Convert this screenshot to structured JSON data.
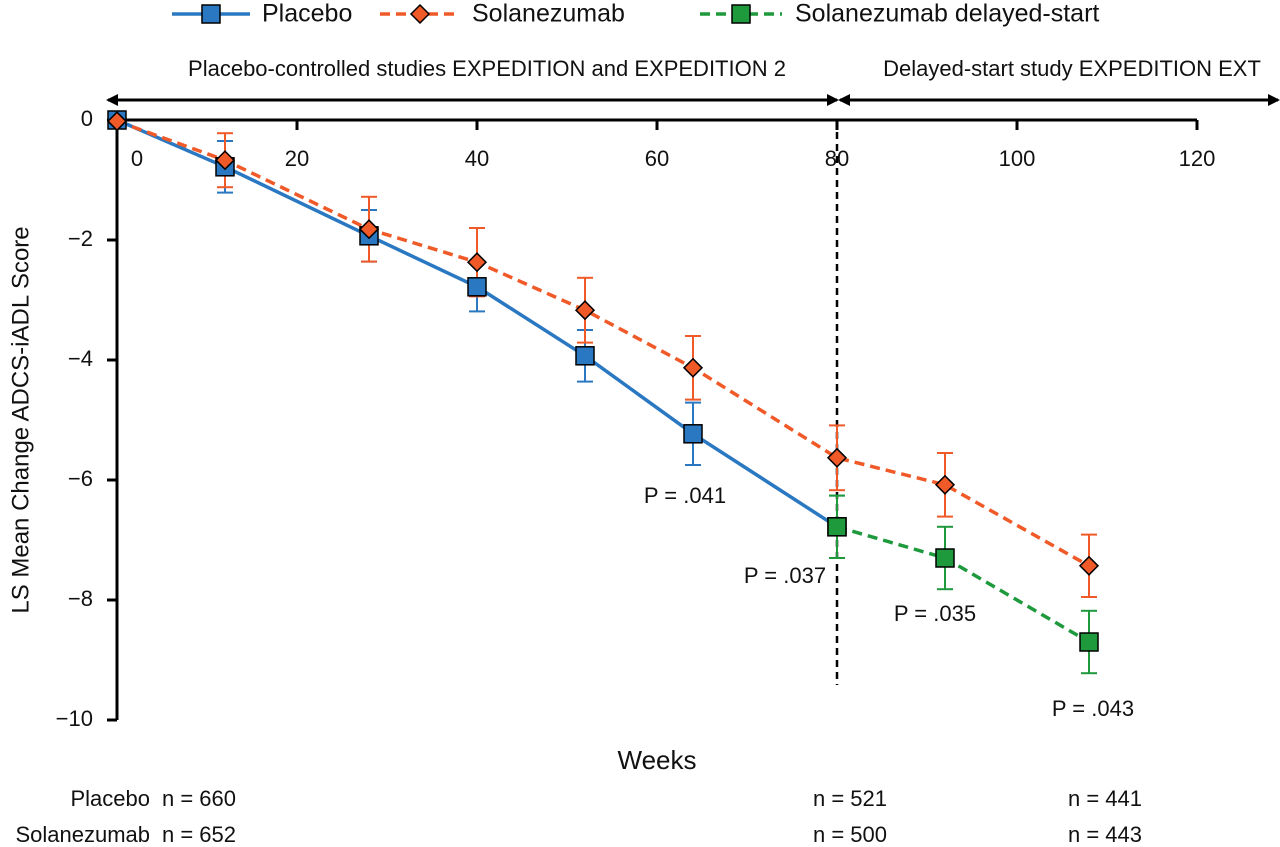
{
  "chart_data": {
    "type": "line",
    "x_label": "Weeks",
    "y_label": "LS Mean Change ADCS-iADL Score",
    "xlim": [
      0,
      120
    ],
    "xticks": [
      0,
      20,
      40,
      60,
      80,
      100,
      120
    ],
    "ylim": [
      -10,
      0
    ],
    "yticks": [
      0,
      {
        "value": -2,
        "label": "−2"
      },
      {
        "value": -4,
        "label": "−4"
      },
      {
        "value": -6,
        "label": "−6"
      },
      {
        "value": -8,
        "label": "−8"
      },
      {
        "value": -10,
        "label": "−10"
      }
    ],
    "series": [
      {
        "name": "Placebo",
        "color": "#2a78c2",
        "marker": "square",
        "dashed": false,
        "x": [
          0,
          12,
          28,
          40,
          52,
          64,
          80
        ],
        "values": [
          0,
          -0.78,
          -1.93,
          -2.78,
          -3.93,
          -5.23,
          -6.78
        ],
        "errors": [
          null,
          0.43,
          0.43,
          0.41,
          0.43,
          0.52,
          0.52
        ]
      },
      {
        "name": "Solanezumab",
        "color": "#f05a28",
        "marker": "diamond",
        "dashed": true,
        "x": [
          0,
          12,
          28,
          40,
          52,
          64,
          80,
          92,
          108
        ],
        "values": [
          -0.02,
          -0.67,
          -1.82,
          -2.37,
          -3.17,
          -4.13,
          -5.63,
          -6.08,
          -7.43
        ],
        "errors": [
          null,
          0.45,
          0.54,
          0.57,
          0.54,
          0.53,
          0.54,
          0.53,
          0.52
        ]
      },
      {
        "name": "Solanezumab delayed-start",
        "color": "#1e9a3c",
        "marker": "square",
        "dashed": true,
        "x": [
          80,
          92,
          108
        ],
        "values": [
          -6.78,
          -7.3,
          -8.7
        ],
        "errors": [
          0.52,
          0.52,
          0.52
        ]
      }
    ],
    "period_divider": 80,
    "periods": [
      "Placebo-controlled studies EXPEDITION and EXPEDITION 2",
      "Delayed-start study EXPEDITION EXT"
    ],
    "annotations": [
      "P = .041",
      "P = .037",
      "P = .035",
      "P = .043"
    ],
    "n_table": [
      {
        "label": "Placebo",
        "cells": [
          "n = 660",
          "n = 521",
          "n = 441"
        ]
      },
      {
        "label": "Solanezumab",
        "cells": [
          "n = 652",
          "n = 500",
          "n = 443"
        ]
      }
    ]
  }
}
